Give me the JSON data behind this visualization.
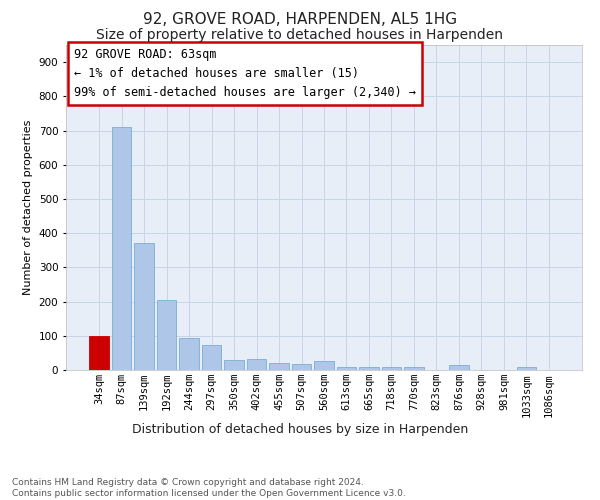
{
  "title": "92, GROVE ROAD, HARPENDEN, AL5 1HG",
  "subtitle": "Size of property relative to detached houses in Harpenden",
  "xlabel": "Distribution of detached houses by size in Harpenden",
  "ylabel": "Number of detached properties",
  "categories": [
    "34sqm",
    "87sqm",
    "139sqm",
    "192sqm",
    "244sqm",
    "297sqm",
    "350sqm",
    "402sqm",
    "455sqm",
    "507sqm",
    "560sqm",
    "613sqm",
    "665sqm",
    "718sqm",
    "770sqm",
    "823sqm",
    "876sqm",
    "928sqm",
    "981sqm",
    "1033sqm",
    "1086sqm"
  ],
  "values": [
    100,
    710,
    370,
    205,
    95,
    73,
    30,
    33,
    20,
    18,
    25,
    8,
    10,
    8,
    10,
    0,
    15,
    0,
    0,
    8,
    0
  ],
  "bar_color": "#aec6e8",
  "bar_edge_color": "#7aaed0",
  "highlight_bar_index": 0,
  "highlight_bar_color": "#cc0000",
  "ylim": [
    0,
    950
  ],
  "yticks": [
    0,
    100,
    200,
    300,
    400,
    500,
    600,
    700,
    800,
    900
  ],
  "annotation_text": "92 GROVE ROAD: 63sqm\n← 1% of detached houses are smaller (15)\n99% of semi-detached houses are larger (2,340) →",
  "annotation_box_color": "#ffffff",
  "annotation_box_edge": "#cc0000",
  "grid_color": "#c8d4e8",
  "background_color": "#e8eef8",
  "footer_text": "Contains HM Land Registry data © Crown copyright and database right 2024.\nContains public sector information licensed under the Open Government Licence v3.0.",
  "title_fontsize": 11,
  "subtitle_fontsize": 10,
  "xlabel_fontsize": 9,
  "ylabel_fontsize": 8,
  "tick_fontsize": 7.5,
  "annotation_fontsize": 8.5,
  "footer_fontsize": 6.5
}
